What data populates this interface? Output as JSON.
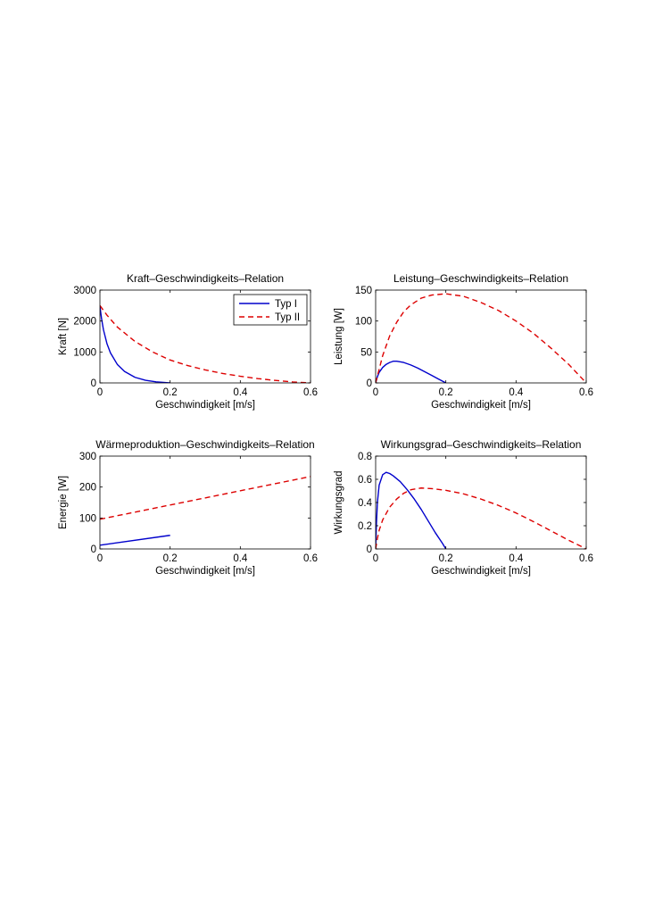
{
  "figure": {
    "legend": {
      "entries": [
        "Typ I",
        "Typ II"
      ],
      "position": "top-right"
    }
  },
  "colors": {
    "typ1": "#0000cc",
    "typ2": "#dd0000",
    "axes": "#000000"
  },
  "chart_data": [
    {
      "type": "line",
      "title": "Kraft–Geschwindigkeits–Relation",
      "xlabel": "Geschwindigkeit [m/s]",
      "ylabel": "Kraft [N]",
      "xlim": [
        0,
        0.6
      ],
      "ylim": [
        0,
        3000
      ],
      "xticks": [
        "0",
        "0.2",
        "0.4",
        "0.6"
      ],
      "yticks": [
        "0",
        "1000",
        "2000",
        "3000"
      ],
      "grid": false,
      "legend": "top-right",
      "series": [
        {
          "name": "Typ I",
          "style": "solid",
          "x": [
            0,
            0.002,
            0.005,
            0.01,
            0.02,
            0.03,
            0.05,
            0.07,
            0.1,
            0.13,
            0.16,
            0.19,
            0.2
          ],
          "y": [
            2500,
            2300,
            2050,
            1720,
            1270,
            970,
            590,
            370,
            180,
            85,
            35,
            8,
            0
          ]
        },
        {
          "name": "Typ II",
          "style": "dashed",
          "x": [
            0,
            0.02,
            0.05,
            0.1,
            0.15,
            0.2,
            0.25,
            0.3,
            0.35,
            0.4,
            0.45,
            0.5,
            0.55,
            0.6
          ],
          "y": [
            2500,
            2190,
            1800,
            1340,
            1000,
            740,
            560,
            420,
            305,
            215,
            140,
            80,
            30,
            0
          ]
        }
      ]
    },
    {
      "type": "line",
      "title": "Leistung–Geschwindigkeits–Relation",
      "xlabel": "Geschwindigkeit [m/s]",
      "ylabel": "Leistung [W]",
      "xlim": [
        0,
        0.6
      ],
      "ylim": [
        0,
        150
      ],
      "xticks": [
        "0",
        "0.2",
        "0.4",
        "0.6"
      ],
      "yticks": [
        "0",
        "50",
        "100",
        "150"
      ],
      "grid": false,
      "series": [
        {
          "name": "Typ I",
          "style": "solid",
          "x": [
            0,
            0.005,
            0.01,
            0.02,
            0.03,
            0.04,
            0.05,
            0.06,
            0.08,
            0.1,
            0.12,
            0.14,
            0.16,
            0.18,
            0.2
          ],
          "y": [
            0,
            10,
            17,
            25,
            30,
            33,
            35,
            35,
            33,
            29,
            24,
            18,
            12,
            6,
            0
          ]
        },
        {
          "name": "Typ II",
          "style": "dashed",
          "x": [
            0,
            0.01,
            0.02,
            0.04,
            0.06,
            0.08,
            0.1,
            0.13,
            0.16,
            0.2,
            0.25,
            0.3,
            0.35,
            0.4,
            0.45,
            0.5,
            0.55,
            0.6
          ],
          "y": [
            0,
            22,
            44,
            76,
            98,
            115,
            126,
            137,
            142,
            144,
            140,
            130,
            117,
            100,
            80,
            56,
            30,
            0
          ]
        }
      ]
    },
    {
      "type": "line",
      "title": "Wärmeproduktion–Geschwindigkeits–Relation",
      "xlabel": "Geschwindigkeit [m/s]",
      "ylabel": "Energie [W]",
      "xlim": [
        0,
        0.6
      ],
      "ylim": [
        0,
        300
      ],
      "xticks": [
        "0",
        "0.2",
        "0.4",
        "0.6"
      ],
      "yticks": [
        "0",
        "100",
        "200",
        "300"
      ],
      "grid": false,
      "series": [
        {
          "name": "Typ I",
          "style": "solid",
          "x": [
            0,
            0.2
          ],
          "y": [
            12,
            44
          ]
        },
        {
          "name": "Typ II",
          "style": "dashed",
          "x": [
            0,
            0.6
          ],
          "y": [
            96,
            234
          ]
        }
      ]
    },
    {
      "type": "line",
      "title": "Wirkungsgrad–Geschwindigkeits–Relation",
      "xlabel": "Geschwindigkeit [m/s]",
      "ylabel": "Wirkungsgrad",
      "xlim": [
        0,
        0.6
      ],
      "ylim": [
        0,
        0.8
      ],
      "xticks": [
        "0",
        "0.2",
        "0.4",
        "0.6"
      ],
      "yticks": [
        "0",
        "0.2",
        "0.4",
        "0.6",
        "0.8"
      ],
      "grid": false,
      "series": [
        {
          "name": "Typ I",
          "style": "solid",
          "x": [
            0,
            0.002,
            0.005,
            0.01,
            0.02,
            0.03,
            0.04,
            0.05,
            0.07,
            0.09,
            0.11,
            0.13,
            0.15,
            0.17,
            0.19,
            0.2
          ],
          "y": [
            0,
            0.2,
            0.4,
            0.55,
            0.64,
            0.66,
            0.65,
            0.63,
            0.58,
            0.51,
            0.43,
            0.34,
            0.24,
            0.14,
            0.05,
            0
          ]
        },
        {
          "name": "Typ II",
          "style": "dashed",
          "x": [
            0,
            0.005,
            0.01,
            0.02,
            0.04,
            0.06,
            0.08,
            0.1,
            0.13,
            0.16,
            0.2,
            0.25,
            0.3,
            0.35,
            0.4,
            0.45,
            0.5,
            0.55,
            0.6
          ],
          "y": [
            0,
            0.09,
            0.16,
            0.25,
            0.36,
            0.43,
            0.48,
            0.51,
            0.525,
            0.52,
            0.505,
            0.475,
            0.43,
            0.375,
            0.31,
            0.235,
            0.155,
            0.075,
            0
          ]
        }
      ]
    }
  ]
}
